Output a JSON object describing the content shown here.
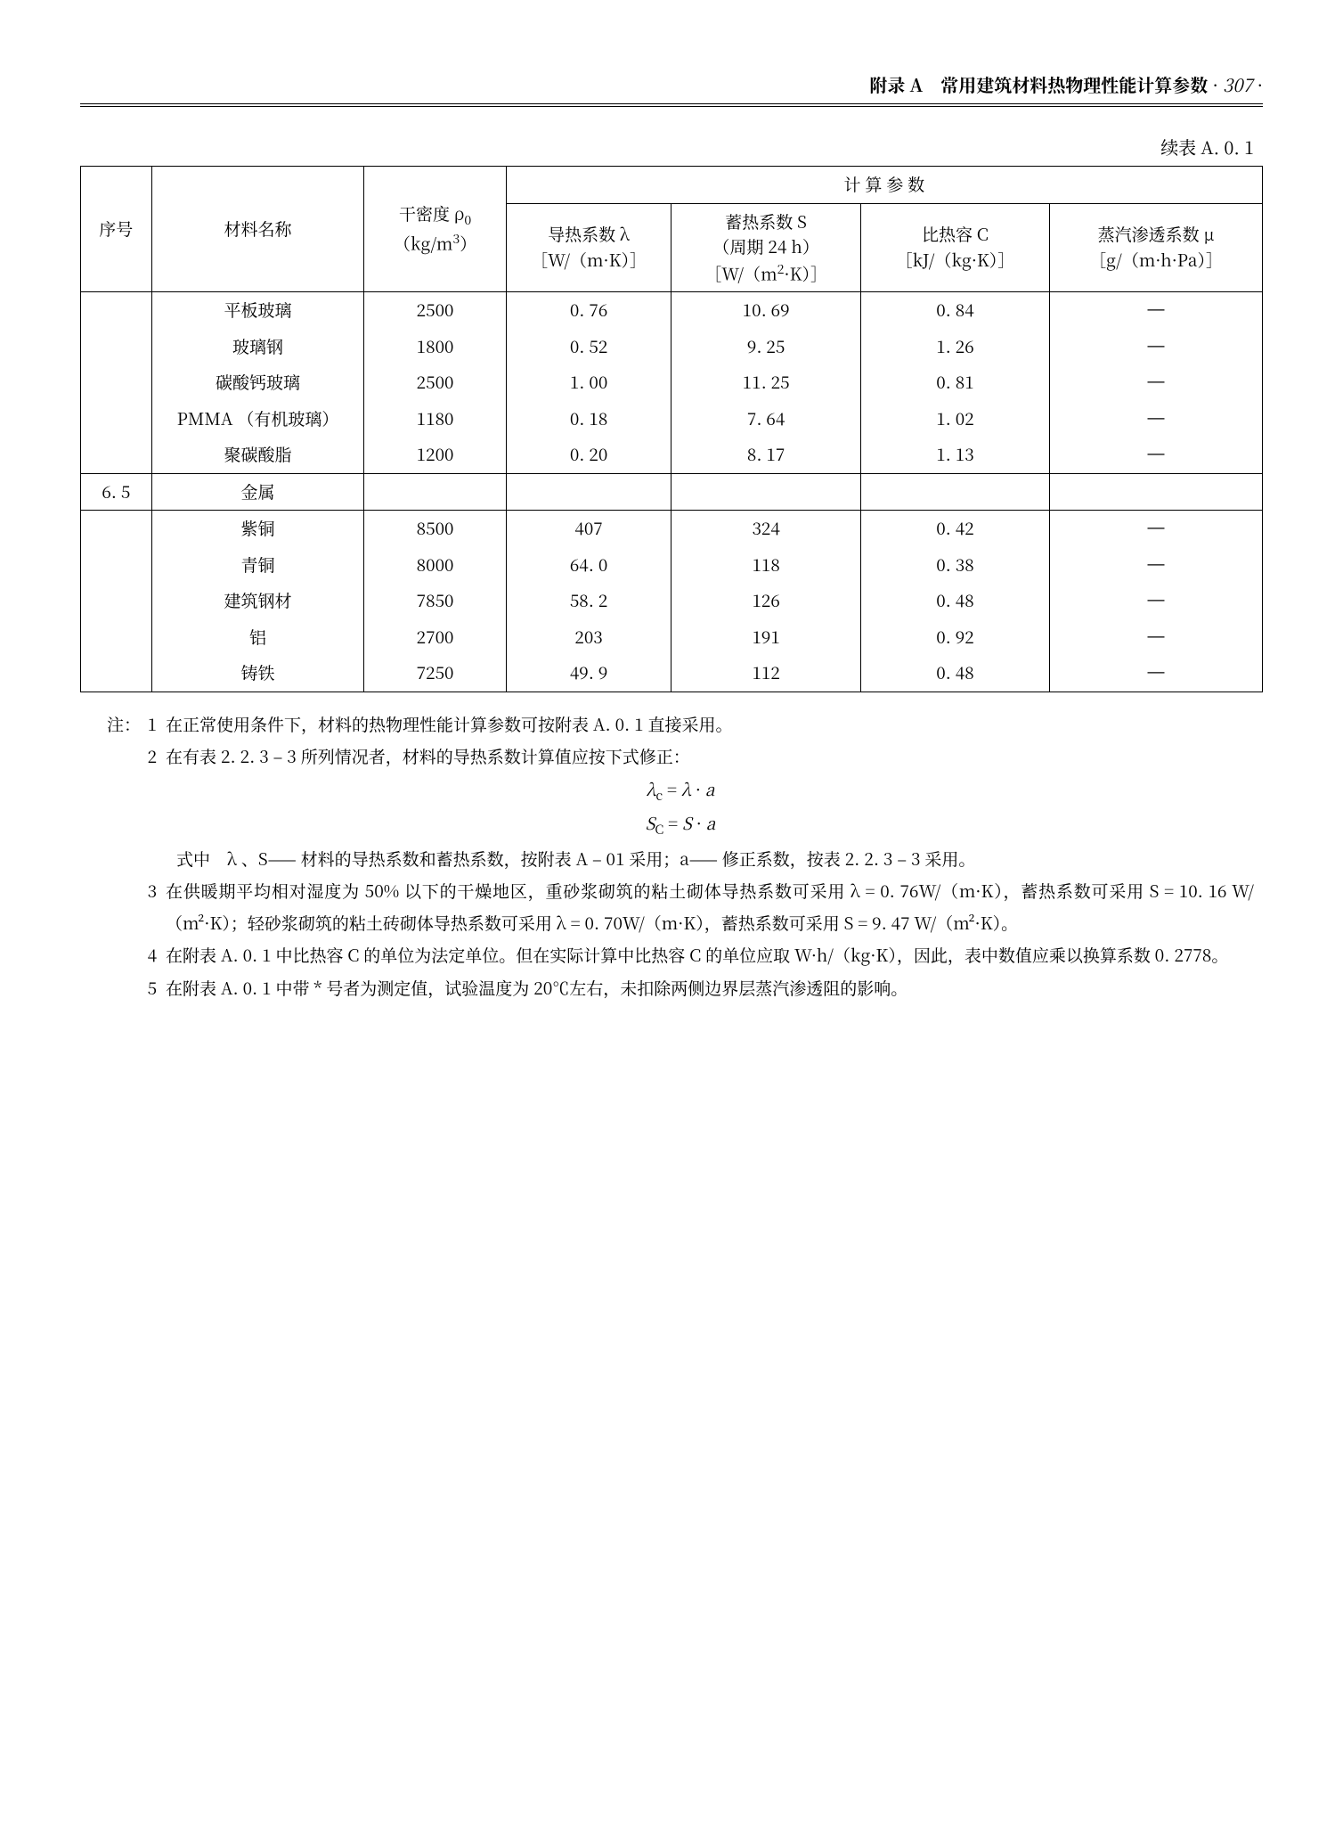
{
  "header": {
    "title_bold": "附录 A　常用建筑材料热物理性能计算参数",
    "dot1": "·",
    "page_number": "307",
    "dot2": "·"
  },
  "table": {
    "caption": "续表 A. 0. 1",
    "headers": {
      "seq": "序号",
      "name": "材料名称",
      "density_l1": "干密度 ρ",
      "density_sub": "0",
      "density_l2": "（kg/m",
      "density_sup": "3",
      "density_l2b": "）",
      "calc_params": "计 算 参 数",
      "lambda_l1": "导热系数 λ",
      "lambda_l2": "［W/（m·K）］",
      "s_l1": "蓄热系数 S",
      "s_l2": "（周期 24 h）",
      "s_l3a": "［W/（m",
      "s_sup": "2",
      "s_l3b": "·K）］",
      "c_l1": "比热容 C",
      "c_l2": "［kJ/（kg·K）］",
      "mu_l1": "蒸汽渗透系数 μ",
      "mu_l2": "［g/（m·h·Pa）］"
    },
    "group1": [
      {
        "name": "平板玻璃",
        "d": "2500",
        "l": "0. 76",
        "s": "10. 69",
        "c": "0. 84",
        "mu": "—"
      },
      {
        "name": "玻璃钢",
        "d": "1800",
        "l": "0. 52",
        "s": "9. 25",
        "c": "1. 26",
        "mu": "—"
      },
      {
        "name": "碳酸钙玻璃",
        "d": "2500",
        "l": "1. 00",
        "s": "11. 25",
        "c": "0. 81",
        "mu": "—"
      },
      {
        "name": "PMMA （有机玻璃）",
        "d": "1180",
        "l": "0. 18",
        "s": "7. 64",
        "c": "1. 02",
        "mu": "—"
      },
      {
        "name": "聚碳酸脂",
        "d": "1200",
        "l": "0. 20",
        "s": "8. 17",
        "c": "1. 13",
        "mu": "—"
      }
    ],
    "section": {
      "seq": "6. 5",
      "name": "金属"
    },
    "group2": [
      {
        "name": "紫铜",
        "d": "8500",
        "l": "407",
        "s": "324",
        "c": "0. 42",
        "mu": "—"
      },
      {
        "name": "青铜",
        "d": "8000",
        "l": "64. 0",
        "s": "118",
        "c": "0. 38",
        "mu": "—"
      },
      {
        "name": "建筑钢材",
        "d": "7850",
        "l": "58. 2",
        "s": "126",
        "c": "0. 48",
        "mu": "—"
      },
      {
        "name": "铝",
        "d": "2700",
        "l": "203",
        "s": "191",
        "c": "0. 92",
        "mu": "—"
      },
      {
        "name": "铸铁",
        "d": "7250",
        "l": "49. 9",
        "s": "112",
        "c": "0. 48",
        "mu": "—"
      }
    ]
  },
  "notes": {
    "label": "注：",
    "n1": {
      "num": "1",
      "text": "在正常使用条件下，材料的热物理性能计算参数可按附表 A. 0. 1 直接采用。"
    },
    "n2": {
      "num": "2",
      "text": "在有表 2. 2. 3 – 3 所列情况者，材料的导热系数计算值应按下式修正："
    },
    "formula1": "λc = λ · a",
    "formula2": "Sc = S · a",
    "n2b": "式中　λ 、S—— 材料的导热系数和蓄热系数，按附表 A – 01 采用；a—— 修正系数，按表 2. 2. 3 – 3 采用。",
    "n3": {
      "num": "3",
      "text": "在供暖期平均相对湿度为 50% 以下的干燥地区，重砂浆砌筑的粘土砌体导热系数可采用 λ = 0. 76W/（m·K），蓄热系数可采用 S = 10. 16 W/（m²·K）；轻砂浆砌筑的粘土砖砌体导热系数可采用 λ = 0. 70W/（m·K），蓄热系数可采用 S = 9. 47 W/（m²·K）。"
    },
    "n4": {
      "num": "4",
      "text": "在附表 A. 0. 1 中比热容 C 的单位为法定单位。但在实际计算中比热容 C 的单位应取 W·h/（kg·K），因此，表中数值应乘以换算系数 0. 2778。"
    },
    "n5": {
      "num": "5",
      "text": "在附表 A. 0. 1 中带 * 号者为测定值，试验温度为 20℃左右，未扣除两侧边界层蒸汽渗透阻的影响。"
    }
  }
}
